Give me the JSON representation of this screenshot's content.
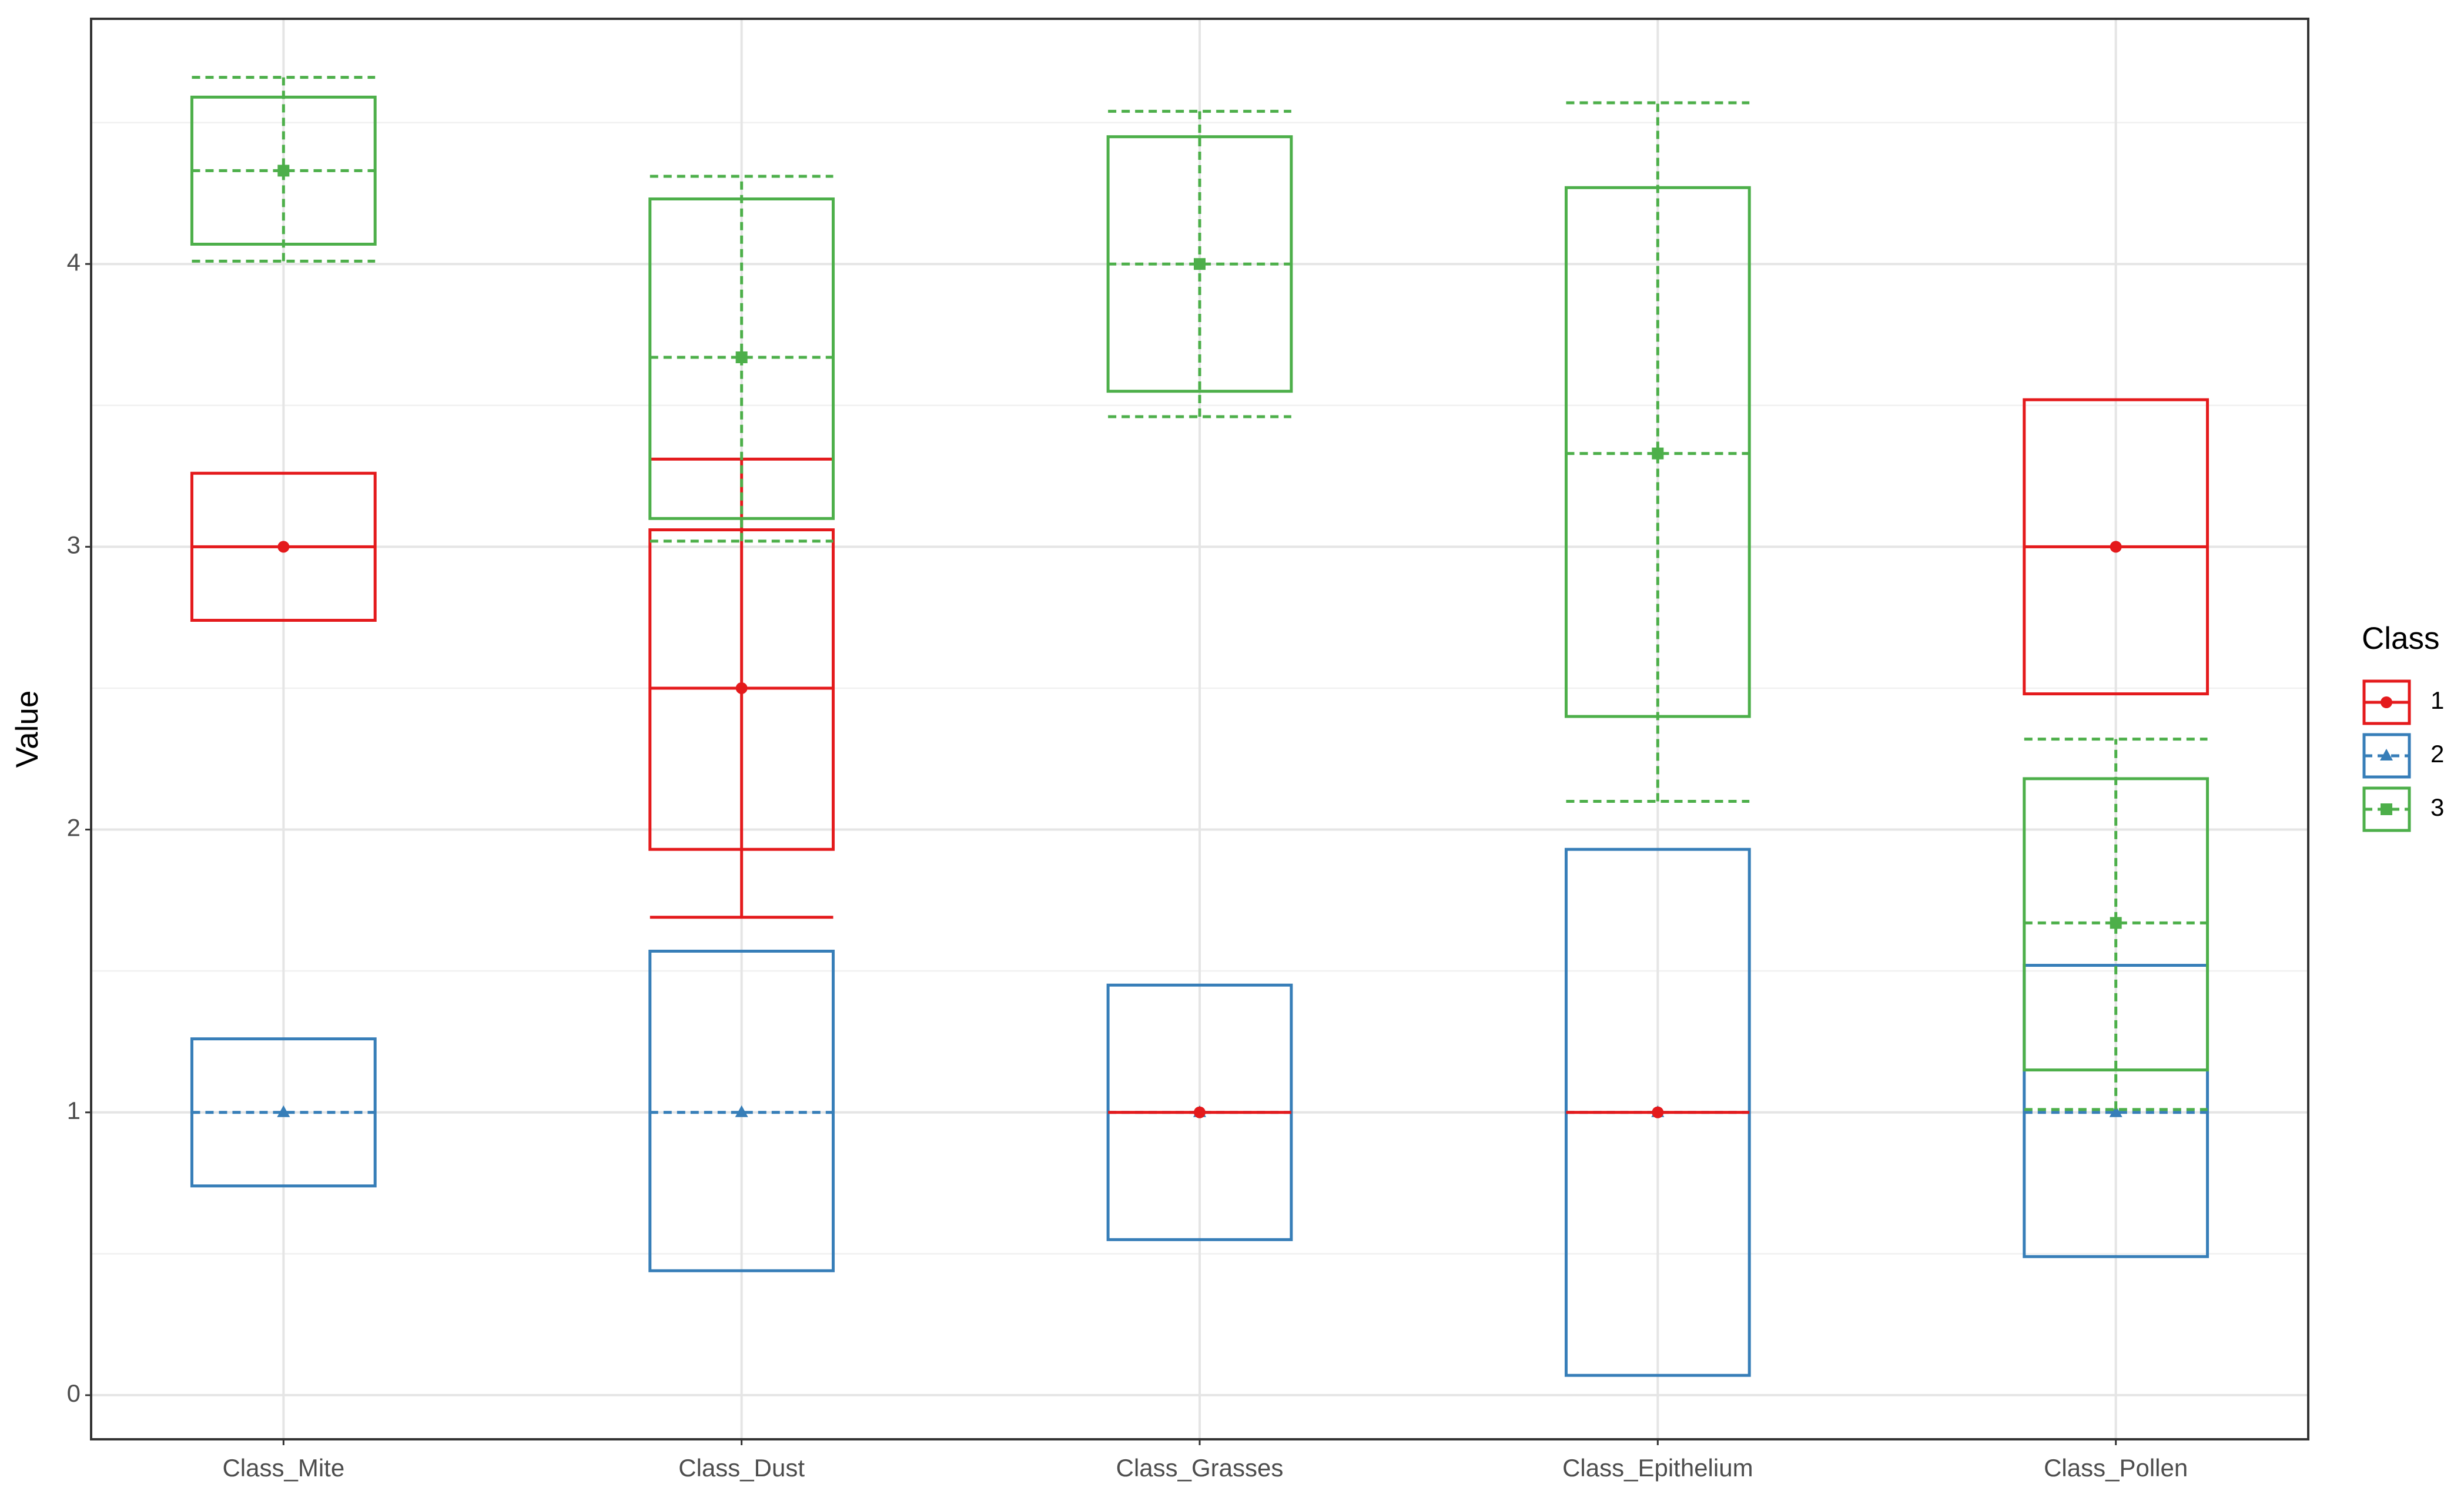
{
  "chart_data": {
    "type": "crossbar",
    "y_label": "Value",
    "legend_title": "Class",
    "legend_position": "right",
    "grid": true,
    "categories": [
      "Class_Mite",
      "Class_Dust",
      "Class_Grasses",
      "Class_Epithelium",
      "Class_Pollen"
    ],
    "ylim": [
      -0.156,
      4.867
    ],
    "yticks": [
      0,
      1,
      2,
      3,
      4
    ],
    "series": [
      {
        "name": "1",
        "color": "#e41a1c",
        "marker": "circle",
        "line_style": "solid",
        "values": [
          3,
          2.5,
          1,
          1,
          3
        ],
        "ymin": [
          2.74,
          1.93,
          1,
          1,
          2.48
        ],
        "ymax": [
          3.26,
          3.06,
          1,
          1,
          3.52
        ],
        "whisker_min": [
          null,
          1.69,
          null,
          null,
          null
        ],
        "whisker_max": [
          null,
          3.31,
          null,
          null,
          null
        ]
      },
      {
        "name": "2",
        "color": "#377eb8",
        "marker": "triangle",
        "line_style": "dashed",
        "values": [
          1,
          1,
          1,
          1,
          1
        ],
        "ymin": [
          0.74,
          0.44,
          0.55,
          0.07,
          0.49
        ],
        "ymax": [
          1.26,
          1.57,
          1.45,
          1.93,
          1.52
        ],
        "whisker_min": [
          null,
          null,
          null,
          null,
          null
        ],
        "whisker_max": [
          null,
          null,
          null,
          null,
          null
        ]
      },
      {
        "name": "3",
        "color": "#4daf4a",
        "marker": "square",
        "line_style": "dashed",
        "values": [
          4.33,
          3.67,
          4,
          3.33,
          1.67
        ],
        "ymin": [
          4.07,
          3.1,
          3.55,
          2.4,
          1.15
        ],
        "ymax": [
          4.59,
          4.23,
          4.45,
          4.27,
          2.18
        ],
        "whisker_min": [
          4.01,
          3.02,
          3.46,
          2.1,
          1.01
        ],
        "whisker_max": [
          4.66,
          4.31,
          4.54,
          4.57,
          2.32
        ]
      }
    ]
  }
}
